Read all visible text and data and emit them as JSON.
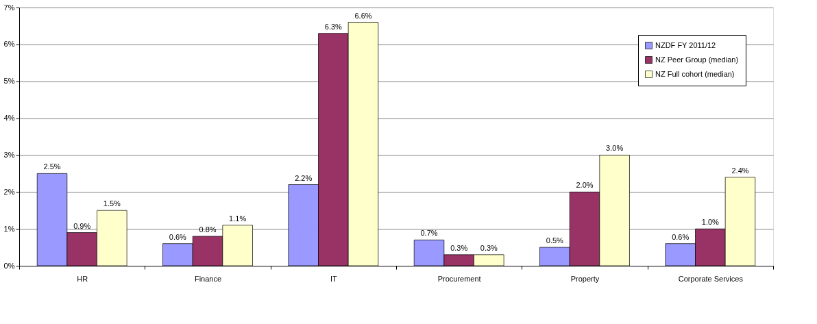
{
  "chart_data": {
    "type": "bar",
    "categories": [
      "HR",
      "Finance",
      "IT",
      "Procurement",
      "Property",
      "Corporate Services"
    ],
    "series": [
      {
        "name": "NZDF FY 2011/12",
        "color": "#9999ff",
        "values": [
          2.5,
          0.6,
          2.2,
          0.7,
          0.5,
          0.6
        ],
        "value_labels": [
          "2.5%",
          "0.6%",
          "2.2%",
          "0.7%",
          "0.5%",
          "0.6%"
        ]
      },
      {
        "name": "NZ Peer Group (median)",
        "color": "#993366",
        "values": [
          0.9,
          0.8,
          6.3,
          0.3,
          2.0,
          1.0
        ],
        "value_labels": [
          "0.9%",
          "0.8%",
          "6.3%",
          "0.3%",
          "2.0%",
          "1.0%"
        ]
      },
      {
        "name": "NZ Full cohort (median)",
        "color": "#ffffcc",
        "values": [
          1.5,
          1.1,
          6.6,
          0.3,
          3.0,
          2.4
        ],
        "value_labels": [
          "1.5%",
          "1.1%",
          "6.6%",
          "0.3%",
          "3.0%",
          "2.4%"
        ]
      }
    ],
    "ylim": [
      0,
      7
    ],
    "yticks": [
      {
        "value": 0,
        "label": "0%"
      },
      {
        "value": 1,
        "label": "1%"
      },
      {
        "value": 2,
        "label": "2%"
      },
      {
        "value": 3,
        "label": "3%"
      },
      {
        "value": 4,
        "label": "4%"
      },
      {
        "value": 5,
        "label": "5%"
      },
      {
        "value": 6,
        "label": "6%"
      },
      {
        "value": 7,
        "label": "7%"
      }
    ],
    "grid": "y",
    "legend": "top right"
  }
}
